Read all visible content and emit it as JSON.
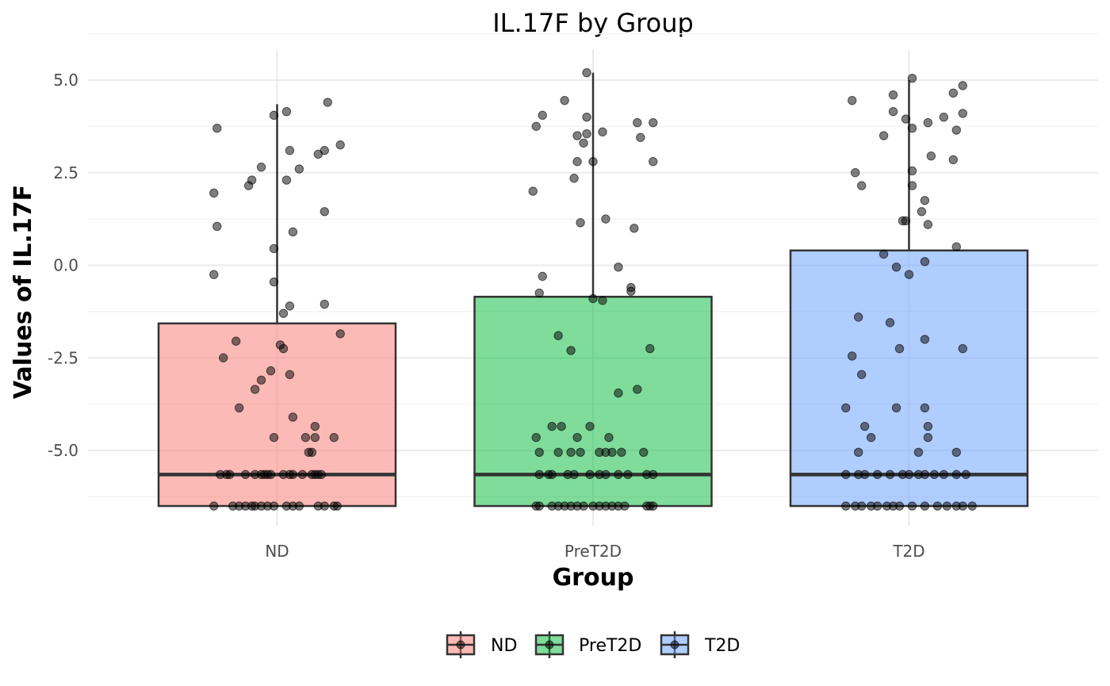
{
  "chart_data": {
    "type": "box",
    "title": "IL.17F by Group",
    "xlabel": "Group",
    "ylabel": "Values of IL.17F",
    "categories": [
      "ND",
      "PreT2D",
      "T2D"
    ],
    "colors": {
      "ND": "#f8766d",
      "PreT2D": "#00ba38",
      "T2D": "#619cff"
    },
    "ylim": [
      -6.9,
      5.8
    ],
    "yticks": [
      5.0,
      2.5,
      0.0,
      -2.5,
      -5.0
    ],
    "ytick_labels": [
      "5.0",
      "2.5",
      "0.0",
      "-2.5",
      "-5.0"
    ],
    "grid": true,
    "legend_position": "bottom",
    "legend_entries": [
      "ND",
      "PreT2D",
      "T2D"
    ],
    "boxes": [
      {
        "group": "ND",
        "q1": -6.5,
        "median": -5.65,
        "q3": -1.57,
        "whisker_low": -6.5,
        "whisker_high": 4.35
      },
      {
        "group": "PreT2D",
        "q1": -6.5,
        "median": -5.65,
        "q3": -0.85,
        "whisker_low": -6.5,
        "whisker_high": 5.2
      },
      {
        "group": "T2D",
        "q1": -6.5,
        "median": -5.65,
        "q3": 0.4,
        "whisker_low": -6.5,
        "whisker_high": 5.0
      }
    ],
    "points": {
      "ND": [
        {
          "dx": -0.19,
          "y": 3.7
        },
        {
          "dx": -0.2,
          "y": 1.95
        },
        {
          "dx": -0.19,
          "y": 1.05
        },
        {
          "dx": -0.2,
          "y": -0.25
        },
        {
          "dx": -0.09,
          "y": 2.15
        },
        {
          "dx": -0.08,
          "y": 2.3
        },
        {
          "dx": -0.05,
          "y": 2.65
        },
        {
          "dx": -0.01,
          "y": 4.05
        },
        {
          "dx": 0.03,
          "y": 4.15
        },
        {
          "dx": 0.04,
          "y": 3.1
        },
        {
          "dx": 0.03,
          "y": 2.3
        },
        {
          "dx": 0.07,
          "y": 2.6
        },
        {
          "dx": 0.05,
          "y": 0.9
        },
        {
          "dx": -0.01,
          "y": 0.45
        },
        {
          "dx": -0.01,
          "y": -0.45
        },
        {
          "dx": 0.02,
          "y": -1.3
        },
        {
          "dx": 0.04,
          "y": -1.1
        },
        {
          "dx": 0.13,
          "y": 3.0
        },
        {
          "dx": 0.15,
          "y": 3.1
        },
        {
          "dx": 0.16,
          "y": 4.4
        },
        {
          "dx": 0.2,
          "y": 3.25
        },
        {
          "dx": 0.15,
          "y": 1.45
        },
        {
          "dx": 0.15,
          "y": -1.05
        },
        {
          "dx": 0.2,
          "y": -1.85
        },
        {
          "dx": -0.13,
          "y": -2.05
        },
        {
          "dx": -0.17,
          "y": -2.5
        },
        {
          "dx": -0.05,
          "y": -3.1
        },
        {
          "dx": -0.07,
          "y": -3.35
        },
        {
          "dx": -0.02,
          "y": -2.85
        },
        {
          "dx": 0.01,
          "y": -2.15
        },
        {
          "dx": 0.02,
          "y": -2.25
        },
        {
          "dx": 0.04,
          "y": -2.95
        },
        {
          "dx": -0.12,
          "y": -3.85
        },
        {
          "dx": -0.01,
          "y": -4.65
        },
        {
          "dx": 0.05,
          "y": -4.1
        },
        {
          "dx": 0.09,
          "y": -4.65
        },
        {
          "dx": 0.12,
          "y": -4.35
        },
        {
          "dx": 0.12,
          "y": -4.65
        },
        {
          "dx": 0.18,
          "y": -4.65
        },
        {
          "dx": 0.1,
          "y": -5.05
        },
        {
          "dx": 0.11,
          "y": -5.05
        },
        {
          "dx": -0.18,
          "y": -5.65
        },
        {
          "dx": -0.16,
          "y": -5.65
        },
        {
          "dx": -0.15,
          "y": -5.65
        },
        {
          "dx": -0.1,
          "y": -5.65
        },
        {
          "dx": -0.07,
          "y": -5.65
        },
        {
          "dx": -0.05,
          "y": -5.65
        },
        {
          "dx": -0.04,
          "y": -5.65
        },
        {
          "dx": -0.03,
          "y": -5.65
        },
        {
          "dx": -0.02,
          "y": -5.65
        },
        {
          "dx": 0.02,
          "y": -5.65
        },
        {
          "dx": 0.04,
          "y": -5.65
        },
        {
          "dx": 0.05,
          "y": -5.65
        },
        {
          "dx": 0.08,
          "y": -5.65
        },
        {
          "dx": 0.11,
          "y": -5.65
        },
        {
          "dx": 0.12,
          "y": -5.65
        },
        {
          "dx": 0.13,
          "y": -5.65
        },
        {
          "dx": 0.14,
          "y": -5.65
        },
        {
          "dx": -0.2,
          "y": -6.5
        },
        {
          "dx": -0.14,
          "y": -6.5
        },
        {
          "dx": -0.12,
          "y": -6.5
        },
        {
          "dx": -0.1,
          "y": -6.5
        },
        {
          "dx": -0.08,
          "y": -6.5
        },
        {
          "dx": -0.07,
          "y": -6.5
        },
        {
          "dx": -0.05,
          "y": -6.5
        },
        {
          "dx": -0.03,
          "y": -6.5
        },
        {
          "dx": -0.01,
          "y": -6.5
        },
        {
          "dx": 0.03,
          "y": -6.5
        },
        {
          "dx": 0.05,
          "y": -6.5
        },
        {
          "dx": 0.07,
          "y": -6.5
        },
        {
          "dx": 0.13,
          "y": -6.5
        },
        {
          "dx": 0.15,
          "y": -6.5
        },
        {
          "dx": 0.18,
          "y": -6.5
        },
        {
          "dx": 0.19,
          "y": -6.5
        }
      ],
      "PreT2D": [
        {
          "dx": -0.18,
          "y": 3.75
        },
        {
          "dx": -0.16,
          "y": 4.05
        },
        {
          "dx": -0.09,
          "y": 4.45
        },
        {
          "dx": -0.02,
          "y": 5.2
        },
        {
          "dx": -0.02,
          "y": 4.0
        },
        {
          "dx": -0.05,
          "y": 3.5
        },
        {
          "dx": -0.03,
          "y": 3.3
        },
        {
          "dx": -0.02,
          "y": 3.55
        },
        {
          "dx": 0.03,
          "y": 3.6
        },
        {
          "dx": 0.14,
          "y": 3.85
        },
        {
          "dx": 0.15,
          "y": 3.45
        },
        {
          "dx": 0.19,
          "y": 3.85
        },
        {
          "dx": -0.05,
          "y": 2.8
        },
        {
          "dx": 0.0,
          "y": 2.8
        },
        {
          "dx": -0.06,
          "y": 2.35
        },
        {
          "dx": 0.19,
          "y": 2.8
        },
        {
          "dx": -0.19,
          "y": 2.0
        },
        {
          "dx": -0.04,
          "y": 1.15
        },
        {
          "dx": 0.04,
          "y": 1.25
        },
        {
          "dx": 0.13,
          "y": 1.0
        },
        {
          "dx": -0.16,
          "y": -0.3
        },
        {
          "dx": -0.17,
          "y": -0.75
        },
        {
          "dx": 0.08,
          "y": -0.05
        },
        {
          "dx": 0.12,
          "y": -0.6
        },
        {
          "dx": 0.12,
          "y": -0.7
        },
        {
          "dx": 0.0,
          "y": -0.9
        },
        {
          "dx": 0.03,
          "y": -0.95
        },
        {
          "dx": -0.11,
          "y": -1.9
        },
        {
          "dx": -0.07,
          "y": -2.3
        },
        {
          "dx": 0.18,
          "y": -2.25
        },
        {
          "dx": 0.14,
          "y": -3.35
        },
        {
          "dx": 0.08,
          "y": -3.45
        },
        {
          "dx": -0.18,
          "y": -4.65
        },
        {
          "dx": -0.13,
          "y": -4.35
        },
        {
          "dx": -0.1,
          "y": -4.35
        },
        {
          "dx": -0.05,
          "y": -4.65
        },
        {
          "dx": -0.01,
          "y": -4.35
        },
        {
          "dx": 0.05,
          "y": -4.65
        },
        {
          "dx": -0.17,
          "y": -5.05
        },
        {
          "dx": -0.11,
          "y": -5.05
        },
        {
          "dx": -0.07,
          "y": -5.05
        },
        {
          "dx": -0.04,
          "y": -5.05
        },
        {
          "dx": 0.02,
          "y": -5.05
        },
        {
          "dx": 0.04,
          "y": -5.05
        },
        {
          "dx": 0.06,
          "y": -5.05
        },
        {
          "dx": 0.09,
          "y": -5.05
        },
        {
          "dx": 0.16,
          "y": -5.05
        },
        {
          "dx": -0.17,
          "y": -5.65
        },
        {
          "dx": -0.14,
          "y": -5.65
        },
        {
          "dx": -0.13,
          "y": -5.65
        },
        {
          "dx": -0.08,
          "y": -5.65
        },
        {
          "dx": -0.06,
          "y": -5.65
        },
        {
          "dx": -0.01,
          "y": -5.65
        },
        {
          "dx": 0.02,
          "y": -5.65
        },
        {
          "dx": 0.04,
          "y": -5.65
        },
        {
          "dx": 0.08,
          "y": -5.65
        },
        {
          "dx": 0.11,
          "y": -5.65
        },
        {
          "dx": 0.17,
          "y": -5.65
        },
        {
          "dx": 0.19,
          "y": -5.65
        },
        {
          "dx": -0.18,
          "y": -6.5
        },
        {
          "dx": -0.17,
          "y": -6.5
        },
        {
          "dx": -0.13,
          "y": -6.5
        },
        {
          "dx": -0.11,
          "y": -6.5
        },
        {
          "dx": -0.09,
          "y": -6.5
        },
        {
          "dx": -0.07,
          "y": -6.5
        },
        {
          "dx": -0.05,
          "y": -6.5
        },
        {
          "dx": -0.03,
          "y": -6.5
        },
        {
          "dx": 0.0,
          "y": -6.5
        },
        {
          "dx": 0.02,
          "y": -6.5
        },
        {
          "dx": 0.04,
          "y": -6.5
        },
        {
          "dx": 0.06,
          "y": -6.5
        },
        {
          "dx": 0.08,
          "y": -6.5
        },
        {
          "dx": 0.1,
          "y": -6.5
        },
        {
          "dx": 0.17,
          "y": -6.5
        },
        {
          "dx": 0.18,
          "y": -6.5
        },
        {
          "dx": 0.19,
          "y": -6.5
        }
      ],
      "T2D": [
        {
          "dx": -0.18,
          "y": 4.45
        },
        {
          "dx": -0.05,
          "y": 4.6
        },
        {
          "dx": -0.05,
          "y": 4.15
        },
        {
          "dx": -0.01,
          "y": 3.95
        },
        {
          "dx": 0.01,
          "y": 3.7
        },
        {
          "dx": 0.01,
          "y": 5.05
        },
        {
          "dx": 0.06,
          "y": 3.85
        },
        {
          "dx": 0.11,
          "y": 4.0
        },
        {
          "dx": 0.14,
          "y": 4.65
        },
        {
          "dx": 0.17,
          "y": 4.85
        },
        {
          "dx": 0.15,
          "y": 3.65
        },
        {
          "dx": 0.17,
          "y": 4.1
        },
        {
          "dx": -0.08,
          "y": 3.5
        },
        {
          "dx": -0.17,
          "y": 2.5
        },
        {
          "dx": -0.15,
          "y": 2.15
        },
        {
          "dx": 0.01,
          "y": 2.55
        },
        {
          "dx": 0.01,
          "y": 2.15
        },
        {
          "dx": 0.07,
          "y": 2.95
        },
        {
          "dx": 0.14,
          "y": 2.85
        },
        {
          "dx": 0.05,
          "y": 1.75
        },
        {
          "dx": 0.04,
          "y": 1.45
        },
        {
          "dx": 0.06,
          "y": 1.1
        },
        {
          "dx": -0.02,
          "y": 1.2
        },
        {
          "dx": -0.01,
          "y": 1.2
        },
        {
          "dx": -0.08,
          "y": 0.3
        },
        {
          "dx": 0.05,
          "y": 0.1
        },
        {
          "dx": 0.15,
          "y": 0.5
        },
        {
          "dx": -0.04,
          "y": -0.05
        },
        {
          "dx": 0.0,
          "y": -0.25
        },
        {
          "dx": -0.16,
          "y": -1.4
        },
        {
          "dx": -0.06,
          "y": -1.55
        },
        {
          "dx": -0.18,
          "y": -2.45
        },
        {
          "dx": -0.03,
          "y": -2.25
        },
        {
          "dx": 0.05,
          "y": -2.0
        },
        {
          "dx": 0.17,
          "y": -2.25
        },
        {
          "dx": -0.15,
          "y": -2.95
        },
        {
          "dx": -0.2,
          "y": -3.85
        },
        {
          "dx": -0.04,
          "y": -3.85
        },
        {
          "dx": 0.05,
          "y": -3.85
        },
        {
          "dx": -0.14,
          "y": -4.35
        },
        {
          "dx": 0.06,
          "y": -4.35
        },
        {
          "dx": -0.12,
          "y": -4.65
        },
        {
          "dx": 0.06,
          "y": -4.65
        },
        {
          "dx": -0.16,
          "y": -5.05
        },
        {
          "dx": 0.03,
          "y": -5.05
        },
        {
          "dx": 0.15,
          "y": -5.05
        },
        {
          "dx": -0.2,
          "y": -5.65
        },
        {
          "dx": -0.16,
          "y": -5.65
        },
        {
          "dx": -0.14,
          "y": -5.65
        },
        {
          "dx": -0.1,
          "y": -5.65
        },
        {
          "dx": -0.06,
          "y": -5.65
        },
        {
          "dx": -0.02,
          "y": -5.65
        },
        {
          "dx": 0.0,
          "y": -5.65
        },
        {
          "dx": 0.03,
          "y": -5.65
        },
        {
          "dx": 0.05,
          "y": -5.65
        },
        {
          "dx": 0.08,
          "y": -5.65
        },
        {
          "dx": 0.11,
          "y": -5.65
        },
        {
          "dx": 0.15,
          "y": -5.65
        },
        {
          "dx": 0.18,
          "y": -5.65
        },
        {
          "dx": -0.2,
          "y": -6.5
        },
        {
          "dx": -0.17,
          "y": -6.5
        },
        {
          "dx": -0.15,
          "y": -6.5
        },
        {
          "dx": -0.12,
          "y": -6.5
        },
        {
          "dx": -0.1,
          "y": -6.5
        },
        {
          "dx": -0.07,
          "y": -6.5
        },
        {
          "dx": -0.05,
          "y": -6.5
        },
        {
          "dx": -0.03,
          "y": -6.5
        },
        {
          "dx": 0.01,
          "y": -6.5
        },
        {
          "dx": 0.05,
          "y": -6.5
        },
        {
          "dx": 0.09,
          "y": -6.5
        },
        {
          "dx": 0.12,
          "y": -6.5
        },
        {
          "dx": 0.15,
          "y": -6.5
        },
        {
          "dx": 0.17,
          "y": -6.5
        },
        {
          "dx": 0.2,
          "y": -6.5
        }
      ]
    }
  }
}
